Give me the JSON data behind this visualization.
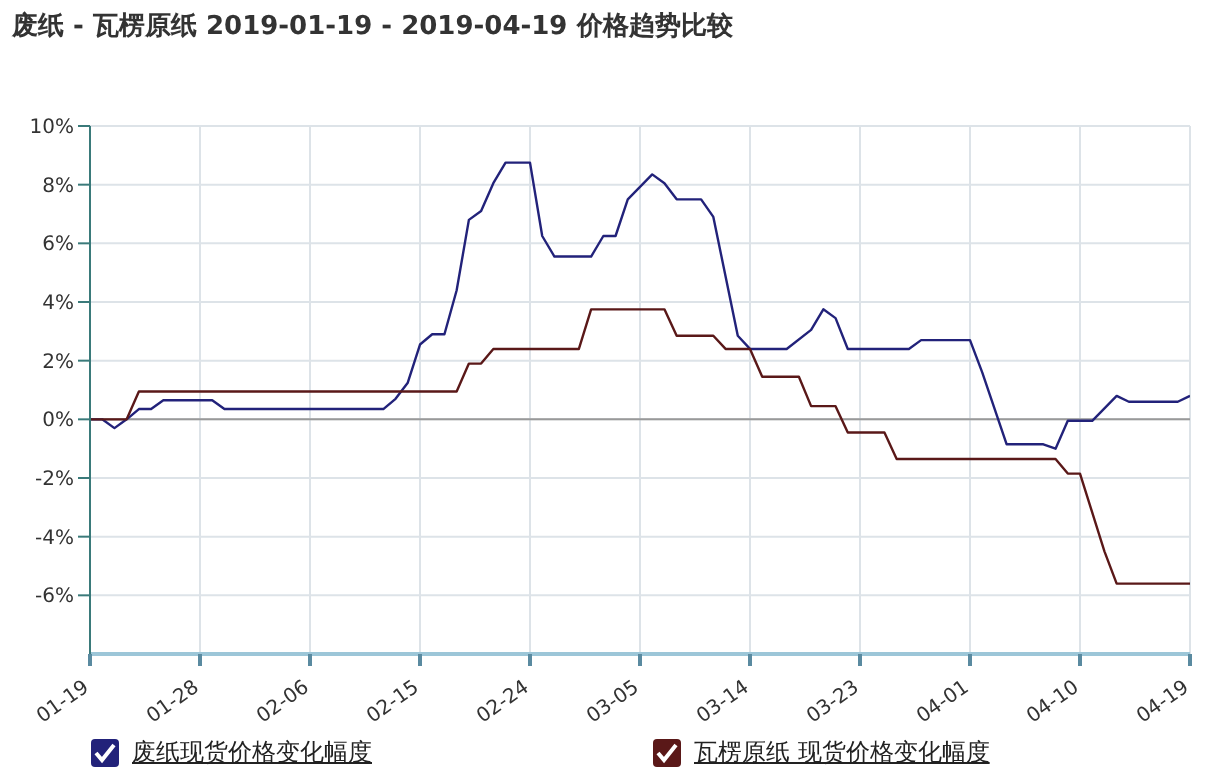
{
  "chart_data": {
    "type": "line",
    "title": "废纸 - 瓦楞原纸 2019-01-19 - 2019-04-19 价格趋势比较",
    "xlim": [
      "--01-19",
      "--04-19"
    ],
    "xticks": [
      {
        "value": "--01-19",
        "label": "01-19"
      },
      {
        "value": "--01-28",
        "label": "01-28"
      },
      {
        "value": "--02-06",
        "label": "02-06"
      },
      {
        "value": "--02-15",
        "label": "02-15"
      },
      {
        "value": "--02-24",
        "label": "02-24"
      },
      {
        "value": "--03-05",
        "label": "03-05"
      },
      {
        "value": "--03-14",
        "label": "03-14"
      },
      {
        "value": "--03-23",
        "label": "03-23"
      },
      {
        "value": "--04-01",
        "label": "04-01"
      },
      {
        "value": "--04-10",
        "label": "04-10"
      },
      {
        "value": "--04-19",
        "label": "04-19"
      }
    ],
    "ylim": [
      -8,
      10
    ],
    "yticks": [
      {
        "value": -6,
        "label": "-6%"
      },
      {
        "value": -4,
        "label": "-4%"
      },
      {
        "value": -2,
        "label": "-2%"
      },
      {
        "value": 0,
        "label": "0%"
      },
      {
        "value": 2,
        "label": "2%"
      },
      {
        "value": 4,
        "label": "4%"
      },
      {
        "value": 6,
        "label": "6%"
      },
      {
        "value": 8,
        "label": "8%"
      },
      {
        "value": 10,
        "label": "10%"
      }
    ],
    "grid": true,
    "legend": "bottom",
    "marker": "none",
    "line_style": "solid",
    "ref_lines": [
      {
        "axis": "y",
        "value": 0,
        "color": "#999999"
      }
    ],
    "series": [
      {
        "name": "废纸现货价格变化幅度",
        "color": "#22227a",
        "x": [
          "--01-19",
          "--01-20",
          "--01-21",
          "--01-22",
          "--01-23",
          "--01-24",
          "--01-25",
          "--01-29",
          "--01-30",
          "--02-12",
          "--02-13",
          "--02-14",
          "--02-15",
          "--02-16",
          "--02-17",
          "--02-18",
          "--02-19",
          "--02-20",
          "--02-21",
          "--02-22",
          "--02-24",
          "--02-25",
          "--02-26",
          "--03-01",
          "--03-02",
          "--03-03",
          "--03-04",
          "--03-06",
          "--03-07",
          "--03-08",
          "--03-10",
          "--03-11",
          "--03-13",
          "--03-14",
          "--03-17",
          "--03-19",
          "--03-20",
          "--03-21",
          "--03-22",
          "--03-27",
          "--03-28",
          "--04-01",
          "--04-02",
          "--04-04",
          "--04-07",
          "--04-08",
          "--04-09",
          "--04-11",
          "--04-13",
          "--04-14",
          "--04-18",
          "--04-19"
        ],
        "values": [
          0,
          0,
          -0.3,
          0,
          0.35,
          0.35,
          0.65,
          0.65,
          0.35,
          0.35,
          0.7,
          1.25,
          2.55,
          2.9,
          2.9,
          4.4,
          6.8,
          7.1,
          8.05,
          8.75,
          8.75,
          6.25,
          5.55,
          5.55,
          6.25,
          6.25,
          7.5,
          8.35,
          8.05,
          7.5,
          7.5,
          6.9,
          2.85,
          2.4,
          2.4,
          3.05,
          3.75,
          3.45,
          2.4,
          2.4,
          2.7,
          2.7,
          1.6,
          -0.85,
          -0.85,
          -1.0,
          -0.05,
          -0.05,
          0.8,
          0.6,
          0.6,
          0.8
        ]
      },
      {
        "name": "瓦楞原纸 现货价格变化幅度",
        "color": "#5a1818",
        "x": [
          "--01-19",
          "--01-22",
          "--01-23",
          "--02-18",
          "--02-19",
          "--02-20",
          "--02-21",
          "--02-28",
          "--03-01",
          "--03-07",
          "--03-08",
          "--03-11",
          "--03-12",
          "--03-14",
          "--03-15",
          "--03-18",
          "--03-19",
          "--03-21",
          "--03-22",
          "--03-25",
          "--03-26",
          "--04-08",
          "--04-09",
          "--04-10",
          "--04-12",
          "--04-13",
          "--04-19"
        ],
        "values": [
          0,
          0,
          0.95,
          0.95,
          1.9,
          1.9,
          2.4,
          2.4,
          3.75,
          3.75,
          2.85,
          2.85,
          2.4,
          2.4,
          1.45,
          1.45,
          0.45,
          0.45,
          -0.45,
          -0.45,
          -1.35,
          -1.35,
          -1.85,
          -1.85,
          -4.5,
          -5.6,
          -5.6
        ]
      }
    ]
  }
}
